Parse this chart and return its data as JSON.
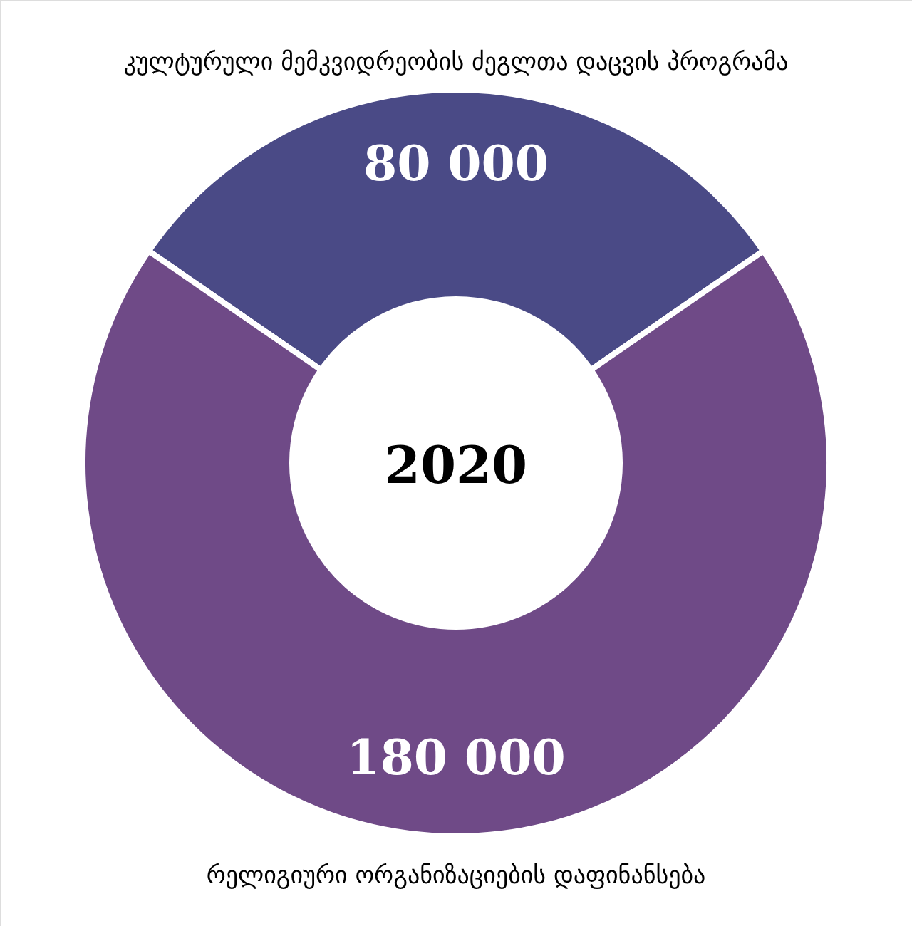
{
  "chart_data": {
    "type": "donut",
    "categories": [
      "კულტურული მემკვიდრეობის ძეგლთა დაცვის პროგრამა",
      "რელიგიური ორგანიზაციების დაფინანსება"
    ],
    "values": [
      80000,
      180000
    ],
    "colors": [
      "#4a4a86",
      "#6f4a87"
    ],
    "value_labels": [
      "80 000",
      "180 000"
    ],
    "annotations": [
      "2020"
    ]
  }
}
